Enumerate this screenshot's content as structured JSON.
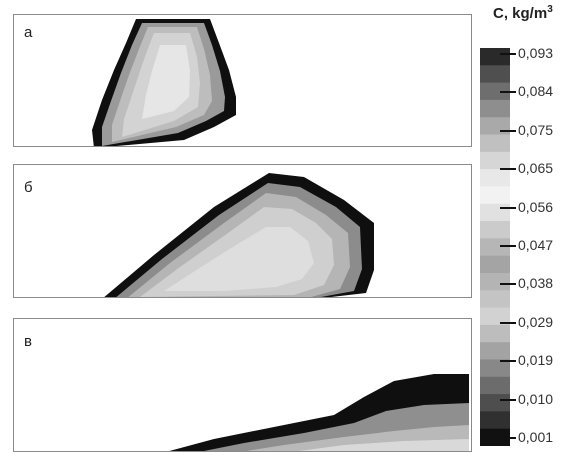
{
  "panels": [
    {
      "id": "a",
      "label": "а"
    },
    {
      "id": "b",
      "label": "б"
    },
    {
      "id": "c",
      "label": "в"
    }
  ],
  "colorbar": {
    "title": "C, kg/m",
    "title_sup": "3",
    "ticks": [
      "0,093",
      "0,084",
      "0,075",
      "0,065",
      "0,056",
      "0,047",
      "0,038",
      "0,029",
      "0,019",
      "0,010",
      "0,001"
    ],
    "bands": [
      "#2a2a2a",
      "#4f4f4f",
      "#6e6e6e",
      "#8e8e8e",
      "#a9a9a9",
      "#c0c0c0",
      "#d6d6d6",
      "#e8e8e8",
      "#f2f2f2",
      "#e1e1e1",
      "#cbcbcb",
      "#b6b6b6",
      "#a4a4a4",
      "#b4b4b4",
      "#c4c4c4",
      "#d2d2d2",
      "#bdbdbd",
      "#a3a3a3",
      "#888888",
      "#6c6c6c",
      "#4e4e4e",
      "#303030",
      "#111111"
    ]
  }
}
